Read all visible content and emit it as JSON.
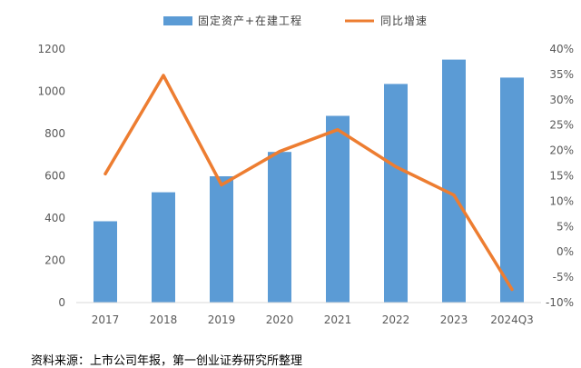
{
  "chart_data": {
    "type": "bar+line",
    "categories": [
      "2017",
      "2018",
      "2019",
      "2020",
      "2021",
      "2022",
      "2023",
      "2024Q3"
    ],
    "series": [
      {
        "name": "固定资产+在建工程",
        "type": "bar",
        "axis": "left",
        "color": "#5B9BD5",
        "values": [
          385,
          522,
          598,
          713,
          884,
          1035,
          1150,
          1065
        ]
      },
      {
        "name": "同比增速",
        "type": "line",
        "axis": "right",
        "color": "#ED7D31",
        "values": [
          15.4,
          34.8,
          13.2,
          19.8,
          24.1,
          16.8,
          11.2,
          -7.4
        ]
      }
    ],
    "y_left": {
      "min": 0,
      "max": 1200,
      "ticks": [
        "0",
        "200",
        "400",
        "600",
        "800",
        "1000",
        "1200"
      ]
    },
    "y_right": {
      "min": -10,
      "max": 40,
      "ticks": [
        "-10%",
        "-5%",
        "0%",
        "5%",
        "10%",
        "15%",
        "20%",
        "25%",
        "30%",
        "35%",
        "40%"
      ]
    },
    "legend_position": "top",
    "grid": false
  },
  "source_note": "资料来源：上市公司年报，第一创业证券研究所整理"
}
